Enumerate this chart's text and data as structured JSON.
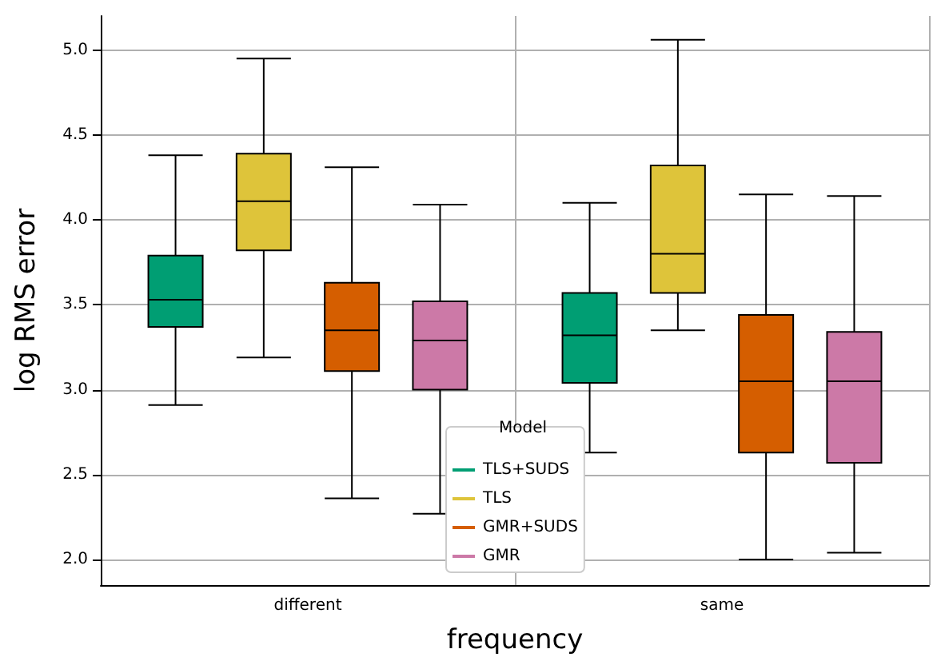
{
  "chart_data": {
    "type": "box",
    "xlabel": "frequency",
    "ylabel": "log RMS error",
    "legend_title": "Model",
    "categories": [
      "different",
      "same"
    ],
    "ylim": [
      1.85,
      5.2
    ],
    "yticks": [
      {
        "value": 2,
        "label": "2.0"
      },
      {
        "value": 2.5,
        "label": "2.5"
      },
      {
        "value": 3,
        "label": "3.0"
      },
      {
        "value": 3.5,
        "label": "3.5"
      },
      {
        "value": 4,
        "label": "4.0"
      },
      {
        "value": 4.5,
        "label": "4.5"
      },
      {
        "value": 5,
        "label": "5.0"
      }
    ],
    "grid": true,
    "legend": "bottom",
    "series": [
      {
        "name": "TLS+SUDS",
        "color": "#009e73",
        "boxes": [
          {
            "low": 2.91,
            "q1": 3.37,
            "median": 3.53,
            "q3": 3.79,
            "high": 4.38
          },
          {
            "low": 2.63,
            "q1": 3.04,
            "median": 3.32,
            "q3": 3.57,
            "high": 4.1
          }
        ]
      },
      {
        "name": "TLS",
        "color": "#dec43a",
        "boxes": [
          {
            "low": 3.19,
            "q1": 3.82,
            "median": 4.11,
            "q3": 4.39,
            "high": 4.95
          },
          {
            "low": 3.35,
            "q1": 3.57,
            "median": 3.8,
            "q3": 4.32,
            "high": 5.06
          }
        ]
      },
      {
        "name": "GMR+SUDS",
        "color": "#d55e00",
        "boxes": [
          {
            "low": 2.36,
            "q1": 3.11,
            "median": 3.35,
            "q3": 3.63,
            "high": 4.31
          },
          {
            "low": 2.0,
            "q1": 2.63,
            "median": 3.05,
            "q3": 3.44,
            "high": 4.15
          }
        ]
      },
      {
        "name": "GMR",
        "color": "#cc79a7",
        "boxes": [
          {
            "low": 2.27,
            "q1": 3.0,
            "median": 3.29,
            "q3": 3.52,
            "high": 4.09
          },
          {
            "low": 2.04,
            "q1": 2.57,
            "median": 3.05,
            "q3": 3.34,
            "high": 4.14
          }
        ]
      }
    ]
  }
}
